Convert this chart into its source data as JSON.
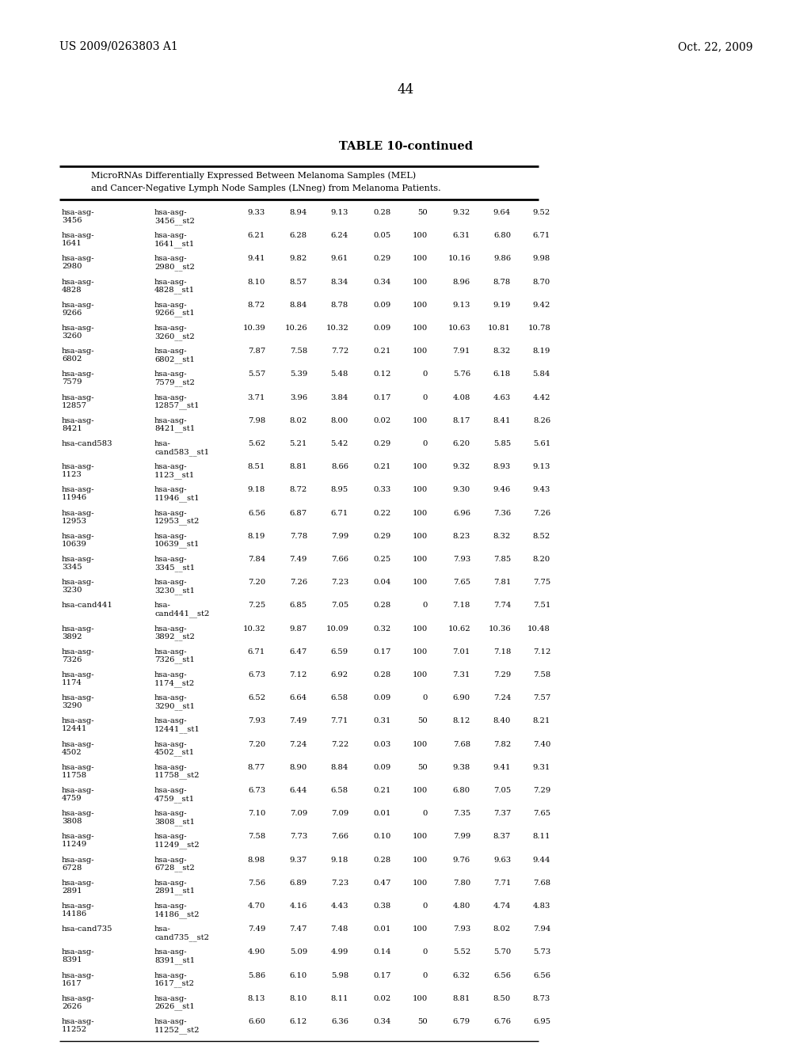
{
  "header_line1": "US 2009/0263803 A1",
  "header_line2": "Oct. 22, 2009",
  "page_number": "44",
  "table_title": "TABLE 10-continued",
  "table_subtitle1": "MicroRNAs Differentially Expressed Between Melanoma Samples (MEL)",
  "table_subtitle2": "and Cancer-Negative Lymph Node Samples (LNneg) from Melanoma Patients.",
  "rows": [
    [
      "hsa-asg-",
      "3456",
      "hsa-asg-",
      "3456__st2",
      "9.33",
      "8.94",
      "9.13",
      "0.28",
      "50",
      "9.32",
      "9.64",
      "9.52"
    ],
    [
      "hsa-asg-",
      "1641",
      "hsa-asg-",
      "1641__st1",
      "6.21",
      "6.28",
      "6.24",
      "0.05",
      "100",
      "6.31",
      "6.80",
      "6.71"
    ],
    [
      "hsa-asg-",
      "2980",
      "hsa-asg-",
      "2980__st2",
      "9.41",
      "9.82",
      "9.61",
      "0.29",
      "100",
      "10.16",
      "9.86",
      "9.98"
    ],
    [
      "hsa-asg-",
      "4828",
      "hsa-asg-",
      "4828__st1",
      "8.10",
      "8.57",
      "8.34",
      "0.34",
      "100",
      "8.96",
      "8.78",
      "8.70"
    ],
    [
      "hsa-asg-",
      "9266",
      "hsa-asg-",
      "9266__st1",
      "8.72",
      "8.84",
      "8.78",
      "0.09",
      "100",
      "9.13",
      "9.19",
      "9.42"
    ],
    [
      "hsa-asg-",
      "3260",
      "hsa-asg-",
      "3260__st2",
      "10.39",
      "10.26",
      "10.32",
      "0.09",
      "100",
      "10.63",
      "10.81",
      "10.78"
    ],
    [
      "hsa-asg-",
      "6802",
      "hsa-asg-",
      "6802__st1",
      "7.87",
      "7.58",
      "7.72",
      "0.21",
      "100",
      "7.91",
      "8.32",
      "8.19"
    ],
    [
      "hsa-asg-",
      "7579",
      "hsa-asg-",
      "7579__st2",
      "5.57",
      "5.39",
      "5.48",
      "0.12",
      "0",
      "5.76",
      "6.18",
      "5.84"
    ],
    [
      "hsa-asg-",
      "12857",
      "hsa-asg-",
      "12857__st1",
      "3.71",
      "3.96",
      "3.84",
      "0.17",
      "0",
      "4.08",
      "4.63",
      "4.42"
    ],
    [
      "hsa-asg-",
      "8421",
      "hsa-asg-",
      "8421__st1",
      "7.98",
      "8.02",
      "8.00",
      "0.02",
      "100",
      "8.17",
      "8.41",
      "8.26"
    ],
    [
      "hsa-cand583",
      "",
      "hsa-",
      "cand583__st1",
      "5.62",
      "5.21",
      "5.42",
      "0.29",
      "0",
      "6.20",
      "5.85",
      "5.61"
    ],
    [
      "hsa-asg-",
      "1123",
      "hsa-asg-",
      "1123__st1",
      "8.51",
      "8.81",
      "8.66",
      "0.21",
      "100",
      "9.32",
      "8.93",
      "9.13"
    ],
    [
      "hsa-asg-",
      "11946",
      "hsa-asg-",
      "11946__st1",
      "9.18",
      "8.72",
      "8.95",
      "0.33",
      "100",
      "9.30",
      "9.46",
      "9.43"
    ],
    [
      "hsa-asg-",
      "12953",
      "hsa-asg-",
      "12953__st2",
      "6.56",
      "6.87",
      "6.71",
      "0.22",
      "100",
      "6.96",
      "7.36",
      "7.26"
    ],
    [
      "hsa-asg-",
      "10639",
      "hsa-asg-",
      "10639__st1",
      "8.19",
      "7.78",
      "7.99",
      "0.29",
      "100",
      "8.23",
      "8.32",
      "8.52"
    ],
    [
      "hsa-asg-",
      "3345",
      "hsa-asg-",
      "3345__st1",
      "7.84",
      "7.49",
      "7.66",
      "0.25",
      "100",
      "7.93",
      "7.85",
      "8.20"
    ],
    [
      "hsa-asg-",
      "3230",
      "hsa-asg-",
      "3230__st1",
      "7.20",
      "7.26",
      "7.23",
      "0.04",
      "100",
      "7.65",
      "7.81",
      "7.75"
    ],
    [
      "hsa-cand441",
      "",
      "hsa-",
      "cand441__st2",
      "7.25",
      "6.85",
      "7.05",
      "0.28",
      "0",
      "7.18",
      "7.74",
      "7.51"
    ],
    [
      "hsa-asg-",
      "3892",
      "hsa-asg-",
      "3892__st2",
      "10.32",
      "9.87",
      "10.09",
      "0.32",
      "100",
      "10.62",
      "10.36",
      "10.48"
    ],
    [
      "hsa-asg-",
      "7326",
      "hsa-asg-",
      "7326__st1",
      "6.71",
      "6.47",
      "6.59",
      "0.17",
      "100",
      "7.01",
      "7.18",
      "7.12"
    ],
    [
      "hsa-asg-",
      "1174",
      "hsa-asg-",
      "1174__st2",
      "6.73",
      "7.12",
      "6.92",
      "0.28",
      "100",
      "7.31",
      "7.29",
      "7.58"
    ],
    [
      "hsa-asg-",
      "3290",
      "hsa-asg-",
      "3290__st1",
      "6.52",
      "6.64",
      "6.58",
      "0.09",
      "0",
      "6.90",
      "7.24",
      "7.57"
    ],
    [
      "hsa-asg-",
      "12441",
      "hsa-asg-",
      "12441__st1",
      "7.93",
      "7.49",
      "7.71",
      "0.31",
      "50",
      "8.12",
      "8.40",
      "8.21"
    ],
    [
      "hsa-asg-",
      "4502",
      "hsa-asg-",
      "4502__st1",
      "7.20",
      "7.24",
      "7.22",
      "0.03",
      "100",
      "7.68",
      "7.82",
      "7.40"
    ],
    [
      "hsa-asg-",
      "11758",
      "hsa-asg-",
      "11758__st2",
      "8.77",
      "8.90",
      "8.84",
      "0.09",
      "50",
      "9.38",
      "9.41",
      "9.31"
    ],
    [
      "hsa-asg-",
      "4759",
      "hsa-asg-",
      "4759__st1",
      "6.73",
      "6.44",
      "6.58",
      "0.21",
      "100",
      "6.80",
      "7.05",
      "7.29"
    ],
    [
      "hsa-asg-",
      "3808",
      "hsa-asg-",
      "3808__st1",
      "7.10",
      "7.09",
      "7.09",
      "0.01",
      "0",
      "7.35",
      "7.37",
      "7.65"
    ],
    [
      "hsa-asg-",
      "11249",
      "hsa-asg-",
      "11249__st2",
      "7.58",
      "7.73",
      "7.66",
      "0.10",
      "100",
      "7.99",
      "8.37",
      "8.11"
    ],
    [
      "hsa-asg-",
      "6728",
      "hsa-asg-",
      "6728__st2",
      "8.98",
      "9.37",
      "9.18",
      "0.28",
      "100",
      "9.76",
      "9.63",
      "9.44"
    ],
    [
      "hsa-asg-",
      "2891",
      "hsa-asg-",
      "2891__st1",
      "7.56",
      "6.89",
      "7.23",
      "0.47",
      "100",
      "7.80",
      "7.71",
      "7.68"
    ],
    [
      "hsa-asg-",
      "14186",
      "hsa-asg-",
      "14186__st2",
      "4.70",
      "4.16",
      "4.43",
      "0.38",
      "0",
      "4.80",
      "4.74",
      "4.83"
    ],
    [
      "hsa-cand735",
      "",
      "hsa-",
      "cand735__st2",
      "7.49",
      "7.47",
      "7.48",
      "0.01",
      "100",
      "7.93",
      "8.02",
      "7.94"
    ],
    [
      "hsa-asg-",
      "8391",
      "hsa-asg-",
      "8391__st1",
      "4.90",
      "5.09",
      "4.99",
      "0.14",
      "0",
      "5.52",
      "5.70",
      "5.73"
    ],
    [
      "hsa-asg-",
      "1617",
      "hsa-asg-",
      "1617__st2",
      "5.86",
      "6.10",
      "5.98",
      "0.17",
      "0",
      "6.32",
      "6.56",
      "6.56"
    ],
    [
      "hsa-asg-",
      "2626",
      "hsa-asg-",
      "2626__st1",
      "8.13",
      "8.10",
      "8.11",
      "0.02",
      "100",
      "8.81",
      "8.50",
      "8.73"
    ],
    [
      "hsa-asg-",
      "11252",
      "hsa-asg-",
      "11252__st2",
      "6.60",
      "6.12",
      "6.36",
      "0.34",
      "50",
      "6.79",
      "6.76",
      "6.95"
    ]
  ],
  "background_color": "#ffffff",
  "text_color": "#000000",
  "font_size": 7.2,
  "title_font_size": 10.5
}
